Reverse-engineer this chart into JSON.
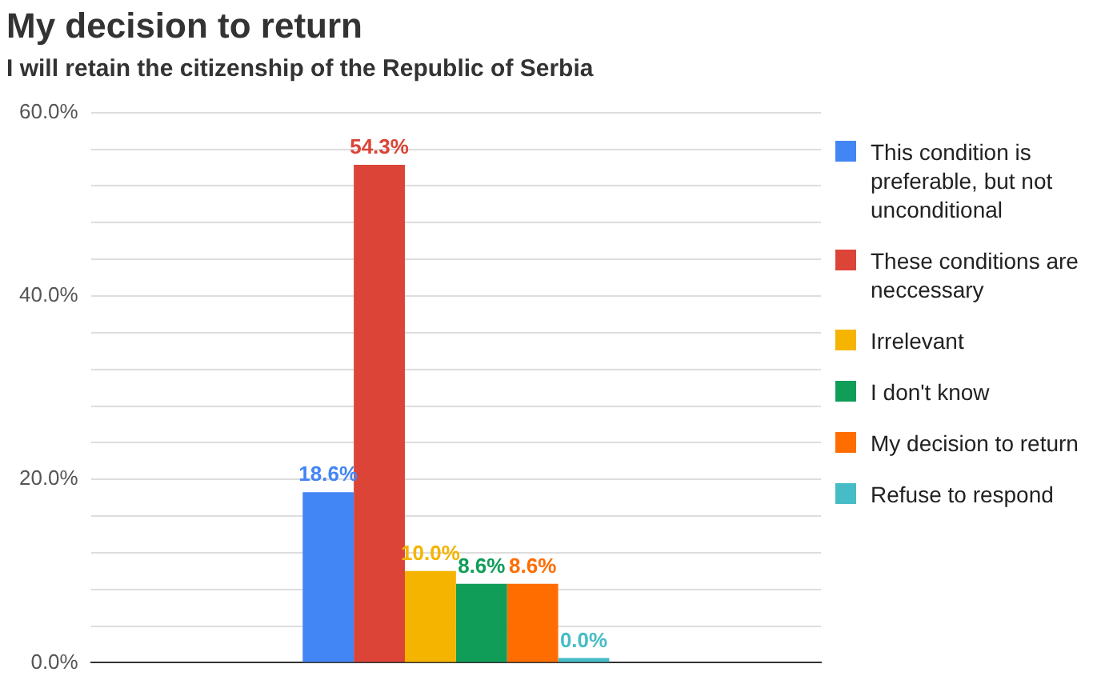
{
  "chart_data": {
    "type": "bar",
    "title": "My decision to return",
    "subtitle": "I will retain the citizenship of the Republic of Serbia",
    "categories": [
      null
    ],
    "series": [
      {
        "name": "This condition is preferable, but not unconditional",
        "color": "#4285f4",
        "values": [
          18.6
        ],
        "value_labels": [
          "18.6%"
        ]
      },
      {
        "name": "These conditions are neccessary",
        "color": "#db4437",
        "values": [
          54.3
        ],
        "value_labels": [
          "54.3%"
        ]
      },
      {
        "name": "Irrelevant",
        "color": "#f4b400",
        "values": [
          10.0
        ],
        "value_labels": [
          "10.0%"
        ]
      },
      {
        "name": "I don't know",
        "color": "#0f9d58",
        "values": [
          8.6
        ],
        "value_labels": [
          "8.6%"
        ]
      },
      {
        "name": "My decision to return",
        "color": "#ff6d00",
        "values": [
          8.6
        ],
        "value_labels": [
          "8.6%"
        ]
      },
      {
        "name": "Refuse to respond",
        "color": "#46bdc6",
        "values": [
          0.0
        ],
        "value_labels": [
          "0.0%"
        ]
      }
    ],
    "ylim": [
      0,
      60
    ],
    "yticks": [
      {
        "value": 0,
        "label": "0.0%"
      },
      {
        "value": 4,
        "label": null
      },
      {
        "value": 8,
        "label": null
      },
      {
        "value": 12,
        "label": null
      },
      {
        "value": 16,
        "label": null
      },
      {
        "value": 20,
        "label": "20.0%"
      },
      {
        "value": 24,
        "label": null
      },
      {
        "value": 28,
        "label": null
      },
      {
        "value": 32,
        "label": null
      },
      {
        "value": 36,
        "label": null
      },
      {
        "value": 40,
        "label": "40.0%"
      },
      {
        "value": 44,
        "label": null
      },
      {
        "value": 48,
        "label": null
      },
      {
        "value": 52,
        "label": null
      },
      {
        "value": 56,
        "label": null
      },
      {
        "value": 60,
        "label": "60.0%"
      }
    ],
    "grid": "y",
    "legend": "right",
    "tick_labels": "y"
  }
}
